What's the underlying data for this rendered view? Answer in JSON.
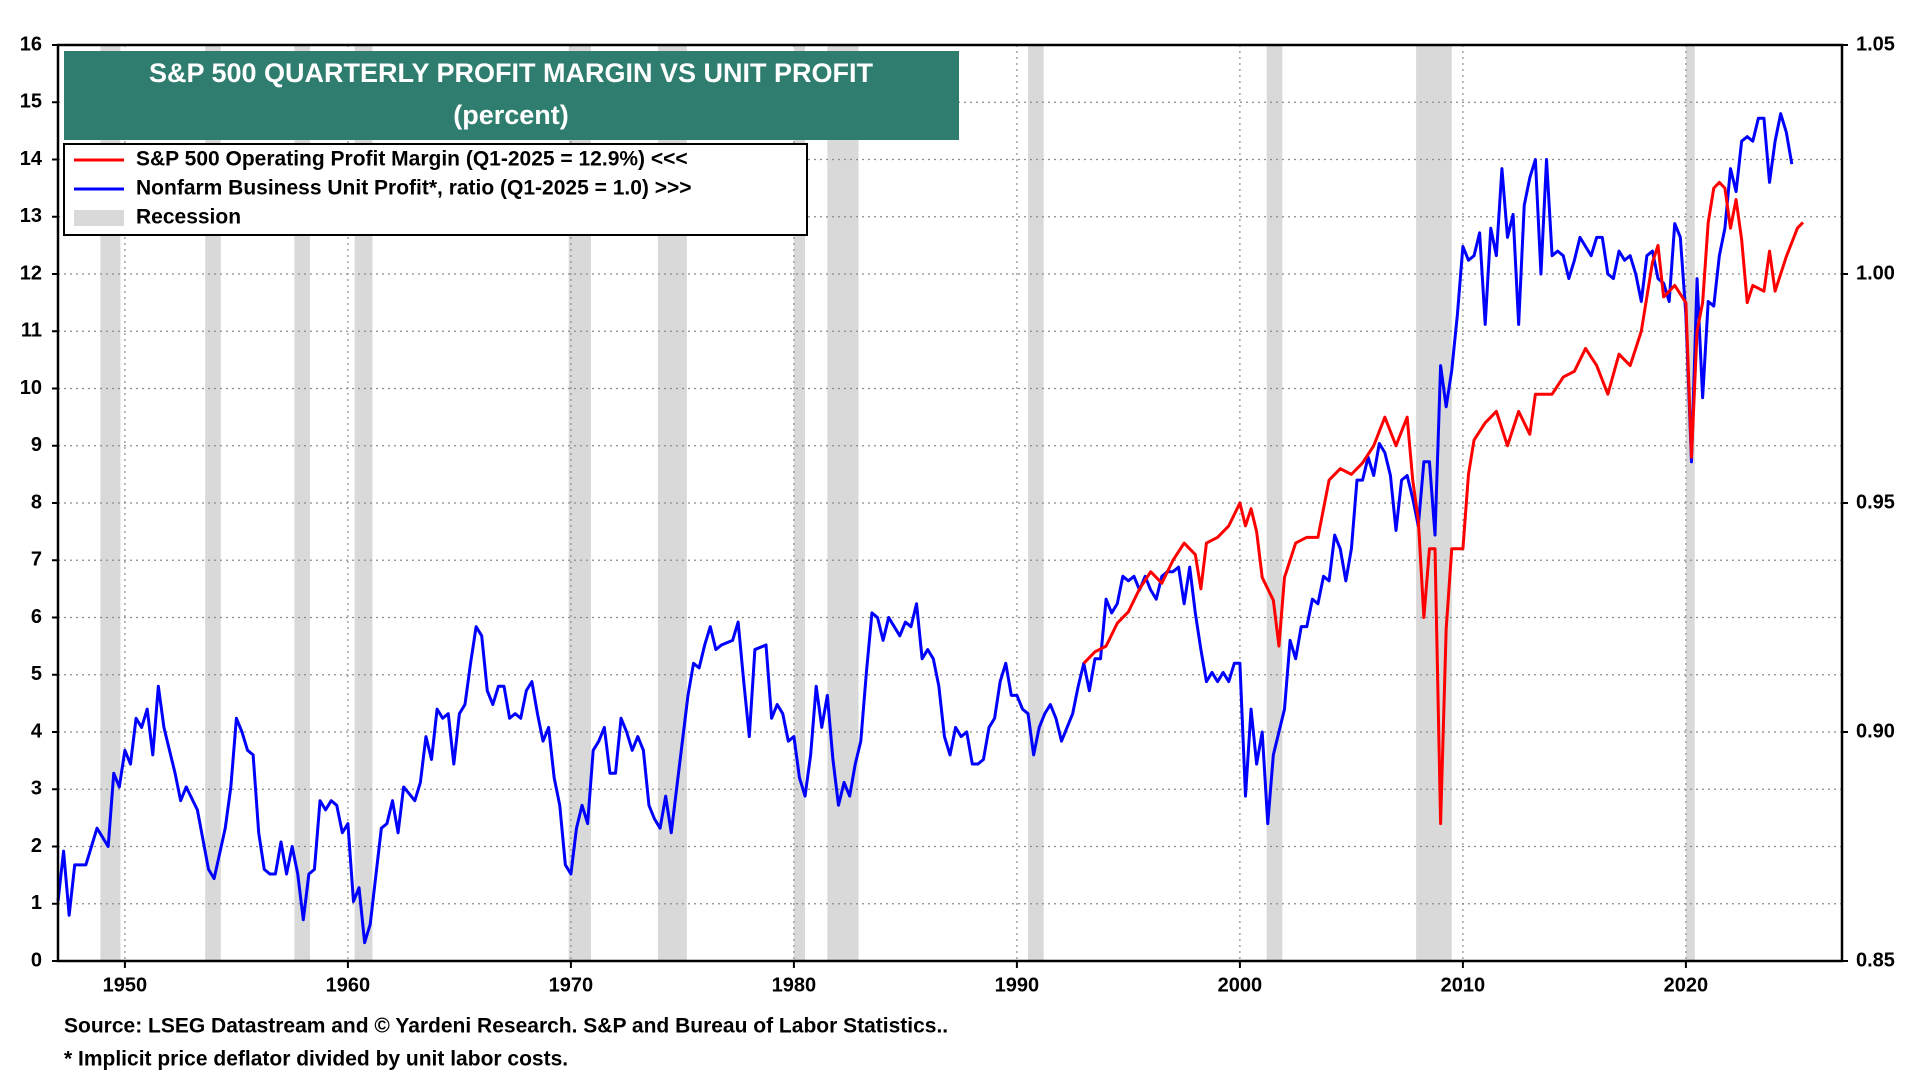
{
  "chart_data": {
    "type": "line",
    "title": "S&P 500 QUARTERLY PROFIT MARGIN VS UNIT PROFIT",
    "subtitle": "(percent)",
    "xlim": [
      1947,
      2027
    ],
    "xticks": [
      1950,
      1960,
      1970,
      1980,
      1990,
      2000,
      2010,
      2020
    ],
    "ylim": [
      0,
      16
    ],
    "yticks": [
      0,
      1,
      2,
      3,
      4,
      5,
      6,
      7,
      8,
      9,
      10,
      11,
      12,
      13,
      14,
      15,
      16
    ],
    "y2lim": [
      0.85,
      1.05
    ],
    "y2ticks": [
      0.85,
      {
        "value": 0.9,
        "label": "0.90"
      },
      0.95,
      {
        "value": 1.0,
        "label": "1.00"
      },
      1.05
    ],
    "grid": true,
    "series": [
      {
        "name": "S&P 500 Operating Profit Margin (Q1-2025 = 12.9%) <<<",
        "color": "#ff0000",
        "axis": "y",
        "x": [
          1993,
          1993.5,
          1994,
          1994.5,
          1995,
          1995.5,
          1996,
          1996.5,
          1997,
          1997.5,
          1998,
          1998.25,
          1998.5,
          1999,
          1999.5,
          2000,
          2000.25,
          2000.5,
          2000.75,
          2001,
          2001.5,
          2001.75,
          2002,
          2002.5,
          2003,
          2003.5,
          2004,
          2004.5,
          2005,
          2005.5,
          2006,
          2006.5,
          2007,
          2007.5,
          2007.75,
          2008,
          2008.25,
          2008.5,
          2008.75,
          2009,
          2009.25,
          2009.5,
          2010,
          2010.25,
          2010.5,
          2011,
          2011.5,
          2012,
          2012.5,
          2013,
          2013.25,
          2014,
          2014.5,
          2015,
          2015.5,
          2016,
          2016.5,
          2017,
          2017.5,
          2018,
          2018.5,
          2018.75,
          2019,
          2019.5,
          2020,
          2020.25,
          2020.5,
          2020.75,
          2021,
          2021.25,
          2021.5,
          2021.75,
          2022,
          2022.25,
          2022.5,
          2022.75,
          2023,
          2023.5,
          2023.75,
          2024,
          2024.5,
          2025,
          2025.25
        ],
        "values": [
          5.2,
          5.4,
          5.5,
          5.9,
          6.1,
          6.5,
          6.8,
          6.6,
          7.0,
          7.3,
          7.1,
          6.5,
          7.3,
          7.4,
          7.6,
          8.0,
          7.6,
          7.9,
          7.5,
          6.7,
          6.3,
          5.5,
          6.7,
          7.3,
          7.4,
          7.4,
          8.4,
          8.6,
          8.5,
          8.7,
          9.0,
          9.5,
          9.0,
          9.5,
          8.4,
          7.7,
          6.0,
          7.2,
          7.2,
          2.4,
          5.8,
          7.2,
          7.2,
          8.5,
          9.1,
          9.4,
          9.6,
          9.0,
          9.6,
          9.2,
          9.9,
          9.9,
          10.2,
          10.3,
          10.7,
          10.4,
          9.9,
          10.6,
          10.4,
          11.0,
          12.2,
          12.5,
          11.6,
          11.8,
          11.5,
          8.8,
          11.0,
          11.5,
          12.9,
          13.5,
          13.6,
          13.5,
          12.8,
          13.3,
          12.6,
          11.5,
          11.8,
          11.7,
          12.4,
          11.7,
          12.3,
          12.8,
          12.9
        ]
      },
      {
        "name": "Nonfarm Business Unit Profit*, ratio (Q1-2025 = 1.0) >>>",
        "color": "#0000ff",
        "axis": "y2",
        "x": [
          1947,
          1947.25,
          1947.5,
          1947.75,
          1948.25,
          1948.75,
          1949.25,
          1949.5,
          1949.75,
          1950,
          1950.25,
          1950.5,
          1950.75,
          1951,
          1951.25,
          1951.5,
          1951.75,
          1952.25,
          1952.5,
          1952.75,
          1953.25,
          1953.75,
          1954,
          1954.5,
          1954.75,
          1955,
          1955.25,
          1955.5,
          1955.75,
          1956,
          1956.25,
          1956.5,
          1956.75,
          1957,
          1957.25,
          1957.5,
          1957.75,
          1958,
          1958.25,
          1958.5,
          1958.75,
          1959,
          1959.25,
          1959.5,
          1959.75,
          1960,
          1960.25,
          1960.5,
          1960.75,
          1961,
          1961.5,
          1961.75,
          1962,
          1962.25,
          1962.5,
          1963,
          1963.25,
          1963.5,
          1963.75,
          1964,
          1964.25,
          1964.5,
          1964.75,
          1965,
          1965.25,
          1965.5,
          1965.75,
          1966,
          1966.25,
          1966.5,
          1966.75,
          1967,
          1967.25,
          1967.5,
          1967.75,
          1968,
          1968.25,
          1968.5,
          1968.75,
          1969,
          1969.25,
          1969.5,
          1969.75,
          1970,
          1970.25,
          1970.5,
          1970.75,
          1971,
          1971.25,
          1971.5,
          1971.75,
          1972,
          1972.25,
          1972.5,
          1972.75,
          1973,
          1973.25,
          1973.5,
          1973.75,
          1974,
          1974.25,
          1974.5,
          1974.75,
          1975,
          1975.25,
          1975.5,
          1975.75,
          1976,
          1976.25,
          1976.5,
          1976.75,
          1977.25,
          1977.5,
          1977.75,
          1978,
          1978.25,
          1978.75,
          1979,
          1979.25,
          1979.5,
          1979.75,
          1980,
          1980.25,
          1980.5,
          1980.75,
          1981,
          1981.25,
          1981.5,
          1981.75,
          1982,
          1982.25,
          1982.5,
          1982.75,
          1983,
          1983.25,
          1983.5,
          1983.75,
          1984,
          1984.25,
          1984.5,
          1984.75,
          1985,
          1985.25,
          1985.5,
          1985.75,
          1986,
          1986.25,
          1986.5,
          1986.75,
          1987,
          1987.25,
          1987.5,
          1987.75,
          1988,
          1988.25,
          1988.5,
          1988.75,
          1989,
          1989.25,
          1989.5,
          1989.75,
          1990,
          1990.25,
          1990.5,
          1990.75,
          1991,
          1991.25,
          1991.5,
          1991.75,
          1992,
          1992.25,
          1992.5,
          1992.75,
          1993,
          1993.25,
          1993.5,
          1993.75,
          1994,
          1994.25,
          1994.5,
          1994.75,
          1995,
          1995.25,
          1995.5,
          1995.75,
          1996,
          1996.25,
          1996.5,
          1996.75,
          1997,
          1997.25,
          1997.5,
          1997.75,
          1998,
          1998.25,
          1998.5,
          1998.75,
          1999,
          1999.25,
          1999.5,
          1999.75,
          2000,
          2000.25,
          2000.5,
          2000.75,
          2001,
          2001.25,
          2001.5,
          2001.75,
          2002,
          2002.25,
          2002.5,
          2002.75,
          2003,
          2003.25,
          2003.5,
          2003.75,
          2004,
          2004.25,
          2004.5,
          2004.75,
          2005,
          2005.25,
          2005.5,
          2005.75,
          2006,
          2006.25,
          2006.5,
          2006.75,
          2007,
          2007.25,
          2007.5,
          2007.75,
          2008,
          2008.25,
          2008.5,
          2008.75,
          2009,
          2009.25,
          2009.5,
          2009.75,
          2010,
          2010.25,
          2010.5,
          2010.75,
          2011,
          2011.25,
          2011.5,
          2011.75,
          2012,
          2012.25,
          2012.5,
          2012.75,
          2013,
          2013.25,
          2013.5,
          2013.75,
          2014,
          2014.25,
          2014.5,
          2014.75,
          2015,
          2015.25,
          2015.5,
          2015.75,
          2016,
          2016.25,
          2016.5,
          2016.75,
          2017,
          2017.25,
          2017.5,
          2017.75,
          2018,
          2018.25,
          2018.5,
          2018.75,
          2019,
          2019.25,
          2019.5,
          2019.75,
          2020,
          2020.25,
          2020.5,
          2020.75,
          2021,
          2021.25,
          2021.5,
          2021.75,
          2022,
          2022.25,
          2022.5,
          2022.75,
          2023,
          2023.25,
          2023.5,
          2023.75,
          2024,
          2024.25,
          2024.5,
          2024.75
        ],
        "values": [
          0.863,
          0.874,
          0.86,
          0.871,
          0.871,
          0.879,
          0.875,
          0.891,
          0.888,
          0.896,
          0.893,
          0.903,
          0.901,
          0.905,
          0.895,
          0.91,
          0.901,
          0.891,
          0.885,
          0.888,
          0.883,
          0.87,
          0.868,
          0.879,
          0.888,
          0.903,
          0.9,
          0.896,
          0.895,
          0.878,
          0.87,
          0.869,
          0.869,
          0.876,
          0.869,
          0.875,
          0.869,
          0.859,
          0.869,
          0.87,
          0.885,
          0.883,
          0.885,
          0.884,
          0.878,
          0.88,
          0.863,
          0.866,
          0.854,
          0.858,
          0.879,
          0.88,
          0.885,
          0.878,
          0.888,
          0.885,
          0.889,
          0.899,
          0.894,
          0.905,
          0.903,
          0.904,
          0.893,
          0.904,
          0.906,
          0.915,
          0.923,
          0.921,
          0.909,
          0.906,
          0.91,
          0.91,
          0.903,
          0.904,
          0.903,
          0.909,
          0.911,
          0.904,
          0.898,
          0.901,
          0.89,
          0.884,
          0.871,
          0.869,
          0.879,
          0.884,
          0.88,
          0.896,
          0.898,
          0.901,
          0.891,
          0.891,
          0.903,
          0.9,
          0.896,
          0.899,
          0.896,
          0.884,
          0.881,
          0.879,
          0.886,
          0.878,
          0.888,
          0.898,
          0.908,
          0.915,
          0.914,
          0.919,
          0.923,
          0.918,
          0.919,
          0.92,
          0.924,
          0.911,
          0.899,
          0.918,
          0.919,
          0.903,
          0.906,
          0.904,
          0.898,
          0.899,
          0.89,
          0.886,
          0.895,
          0.91,
          0.901,
          0.908,
          0.894,
          0.884,
          0.889,
          0.886,
          0.893,
          0.898,
          0.913,
          0.926,
          0.925,
          0.92,
          0.925,
          0.923,
          0.921,
          0.924,
          0.923,
          0.928,
          0.916,
          0.918,
          0.916,
          0.91,
          0.899,
          0.895,
          0.901,
          0.899,
          0.9,
          0.893,
          0.893,
          0.894,
          0.901,
          0.903,
          0.911,
          0.915,
          0.908,
          0.908,
          0.905,
          0.904,
          0.895,
          0.901,
          0.904,
          0.906,
          0.903,
          0.898,
          0.901,
          0.904,
          0.91,
          0.915,
          0.909,
          0.916,
          0.916,
          0.929,
          0.926,
          0.928,
          0.934,
          0.933,
          0.934,
          0.931,
          0.934,
          0.931,
          0.929,
          0.934,
          0.935,
          0.935,
          0.936,
          0.928,
          0.936,
          0.926,
          0.918,
          0.911,
          0.913,
          0.911,
          0.913,
          0.911,
          0.915,
          0.915,
          0.886,
          0.905,
          0.893,
          0.9,
          0.88,
          0.895,
          0.9,
          0.905,
          0.92,
          0.916,
          0.923,
          0.923,
          0.929,
          0.928,
          0.934,
          0.933,
          0.943,
          0.94,
          0.933,
          0.94,
          0.955,
          0.955,
          0.96,
          0.956,
          0.963,
          0.961,
          0.956,
          0.944,
          0.955,
          0.956,
          0.951,
          0.945,
          0.959,
          0.959,
          0.943,
          0.98,
          0.971,
          0.979,
          0.991,
          1.006,
          1.003,
          1.004,
          1.009,
          0.989,
          1.01,
          1.004,
          1.023,
          1.008,
          1.013,
          0.989,
          1.015,
          1.021,
          1.025,
          1.0,
          1.025,
          1.004,
          1.005,
          1.004,
          0.999,
          1.003,
          1.008,
          1.006,
          1.004,
          1.008,
          1.008,
          1.0,
          0.999,
          1.005,
          1.003,
          1.004,
          1.0,
          0.994,
          1.004,
          1.005,
          0.999,
          0.998,
          0.994,
          1.011,
          1.008,
          0.991,
          0.959,
          0.999,
          0.973,
          0.994,
          0.993,
          1.004,
          1.01,
          1.023,
          1.018,
          1.029,
          1.03,
          1.029,
          1.034,
          1.034,
          1.02,
          1.029,
          1.035,
          1.031,
          1.024
        ]
      }
    ],
    "recessions": {
      "name": "Recession",
      "color": "#d9d9d9",
      "spans": [
        [
          1948.9,
          1949.8
        ],
        [
          1953.6,
          1954.3
        ],
        [
          1957.6,
          1958.3
        ],
        [
          1960.3,
          1961.1
        ],
        [
          1969.9,
          1970.9
        ],
        [
          1973.9,
          1975.2
        ],
        [
          1980.0,
          1980.5
        ],
        [
          1981.5,
          1982.9
        ],
        [
          1990.5,
          1991.2
        ],
        [
          2001.2,
          2001.9
        ],
        [
          2007.9,
          2009.5
        ],
        [
          2020.0,
          2020.4
        ]
      ]
    },
    "notes": [
      "Source: LSEG Datastream and © Yardeni Research. S&P and Bureau of Labor Statistics..",
      "* Implicit price deflator divided by unit labor costs."
    ]
  }
}
